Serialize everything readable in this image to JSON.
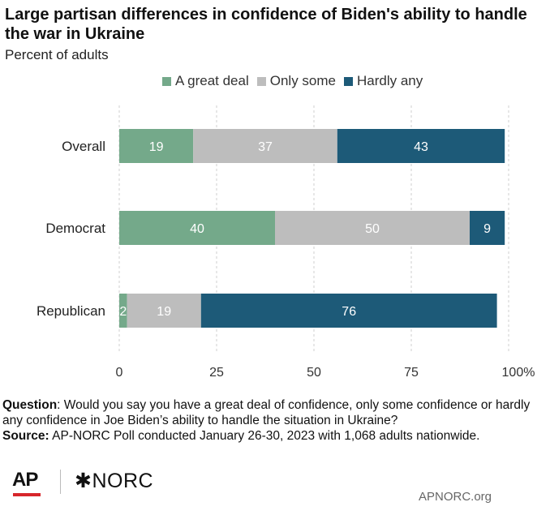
{
  "title": "Large partisan differences in confidence of Biden's ability to handle the war in Ukraine",
  "subtitle": "Percent of adults",
  "legend": [
    {
      "label": "A great deal",
      "color": "#74a98a"
    },
    {
      "label": "Only some",
      "color": "#bdbdbd"
    },
    {
      "label": "Hardly any",
      "color": "#1d5a78"
    }
  ],
  "chart_data": {
    "type": "bar",
    "orientation": "horizontal",
    "stacked": true,
    "categories": [
      "Overall",
      "Democrat",
      "Republican"
    ],
    "series": [
      {
        "name": "A great deal",
        "values": [
          19,
          40,
          2
        ],
        "color": "#74a98a"
      },
      {
        "name": "Only some",
        "values": [
          37,
          50,
          19
        ],
        "color": "#bdbdbd"
      },
      {
        "name": "Hardly any",
        "values": [
          43,
          9,
          76
        ],
        "color": "#1d5a78"
      }
    ],
    "xlim": [
      0,
      100
    ],
    "xticks": [
      0,
      25,
      50,
      75,
      100
    ],
    "xtick_labels": [
      "0",
      "25",
      "50",
      "75",
      "100%"
    ],
    "grid": true,
    "title": "Large partisan differences in confidence of Biden's ability to handle the war in Ukraine",
    "subtitle": "Percent of adults",
    "legend_position": "top"
  },
  "footnote": {
    "question_label": "Question",
    "question_text": ": Would you say you have a great deal of confidence, only some confidence or hardly any confidence in Joe Biden’s ability to handle the situation in Ukraine?",
    "source_label": "Source:",
    "source_text": " AP-NORC Poll conducted January 26-30, 2023 with 1,068 adults nationwide."
  },
  "logos": {
    "ap": "AP",
    "norc": "✱NORC"
  },
  "site": "APNORC.org"
}
